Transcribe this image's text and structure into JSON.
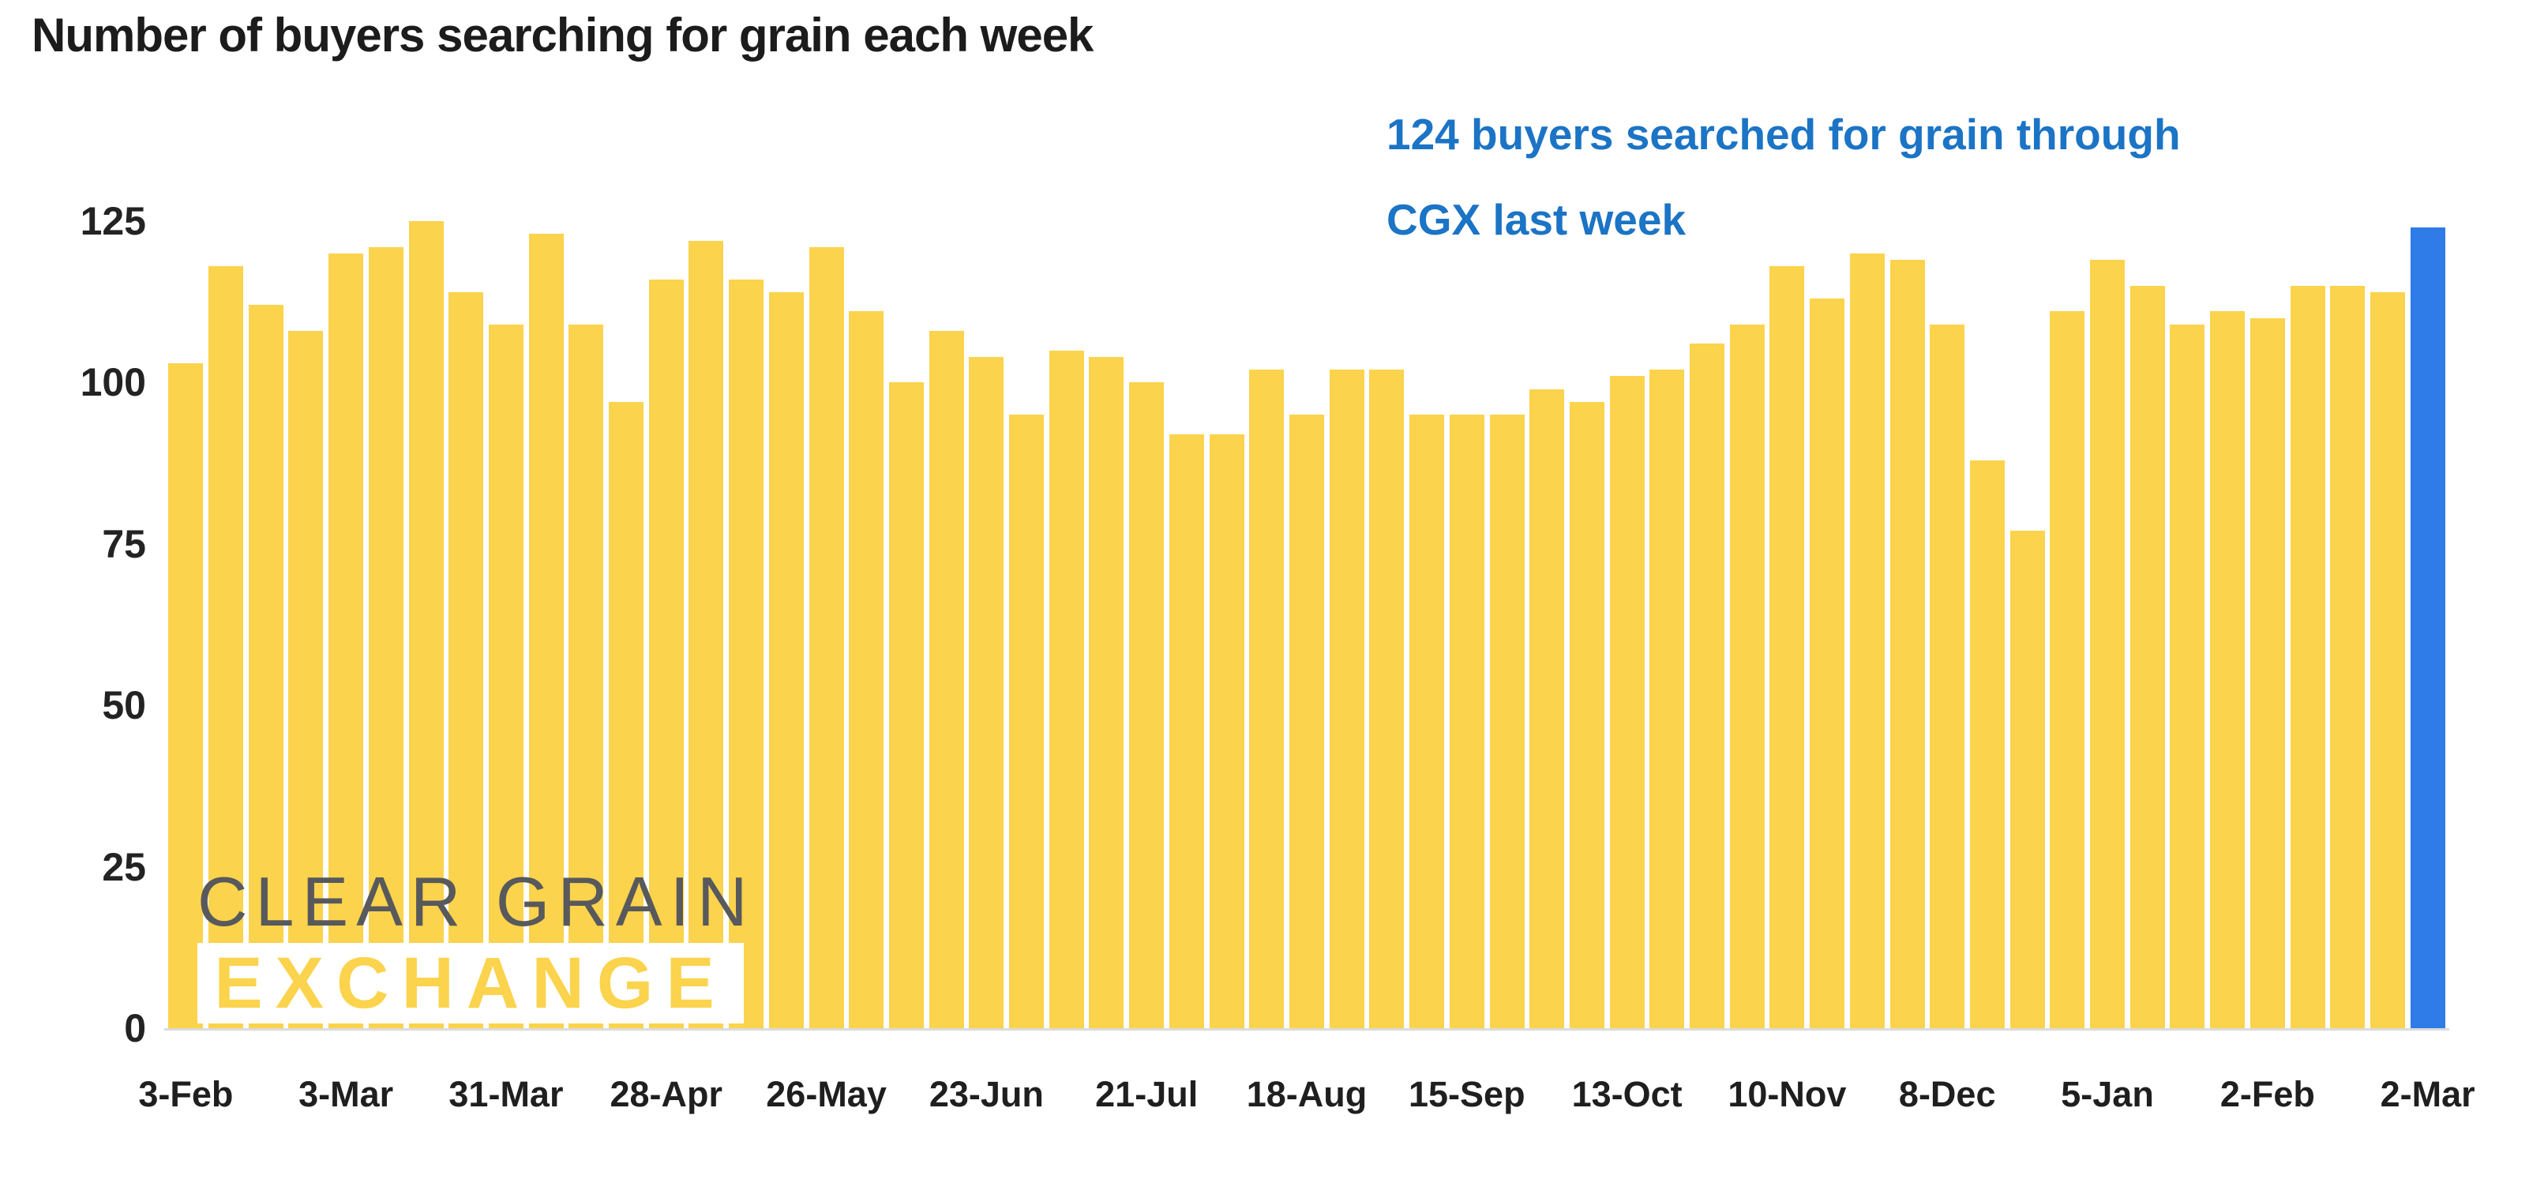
{
  "page": {
    "title": "Number of buyers searching for grain each week",
    "annotation": {
      "line1": "124 buyers searched for grain through",
      "line2": "CGX last week",
      "color": "#1b74c5"
    },
    "watermark": {
      "line1": "CLEAR GRAIN",
      "line2": "EXCHANGE",
      "gray": "#58595c"
    }
  },
  "chart_data": {
    "type": "bar",
    "title": "Number of buyers searching for grain each week",
    "values": [
      103,
      118,
      112,
      108,
      120,
      121,
      125,
      114,
      109,
      123,
      109,
      97,
      116,
      122,
      116,
      114,
      121,
      111,
      100,
      108,
      104,
      95,
      105,
      104,
      100,
      92,
      92,
      102,
      95,
      102,
      102,
      95,
      95,
      95,
      99,
      97,
      101,
      102,
      106,
      109,
      118,
      113,
      120,
      119,
      109,
      88,
      77,
      111,
      119,
      115,
      109,
      111,
      110,
      115,
      115,
      114,
      124
    ],
    "x_tick_labels": [
      "3-Feb",
      "3-Mar",
      "31-Mar",
      "28-Apr",
      "26-May",
      "23-Jun",
      "21-Jul",
      "18-Aug",
      "15-Sep",
      "13-Oct",
      "10-Nov",
      "8-Dec",
      "5-Jan",
      "2-Feb",
      "2-Mar"
    ],
    "x_tick_every": 4,
    "y_ticks": [
      0,
      25,
      50,
      75,
      100,
      125
    ],
    "ylim": [
      0,
      125
    ],
    "grid": false,
    "legend": false,
    "bar_color": "#fbd34c",
    "highlight_color": "#2f7be8",
    "highlighted_bar_index": 56,
    "annotation_text": "124 buyers searched for grain through CGX last week"
  }
}
